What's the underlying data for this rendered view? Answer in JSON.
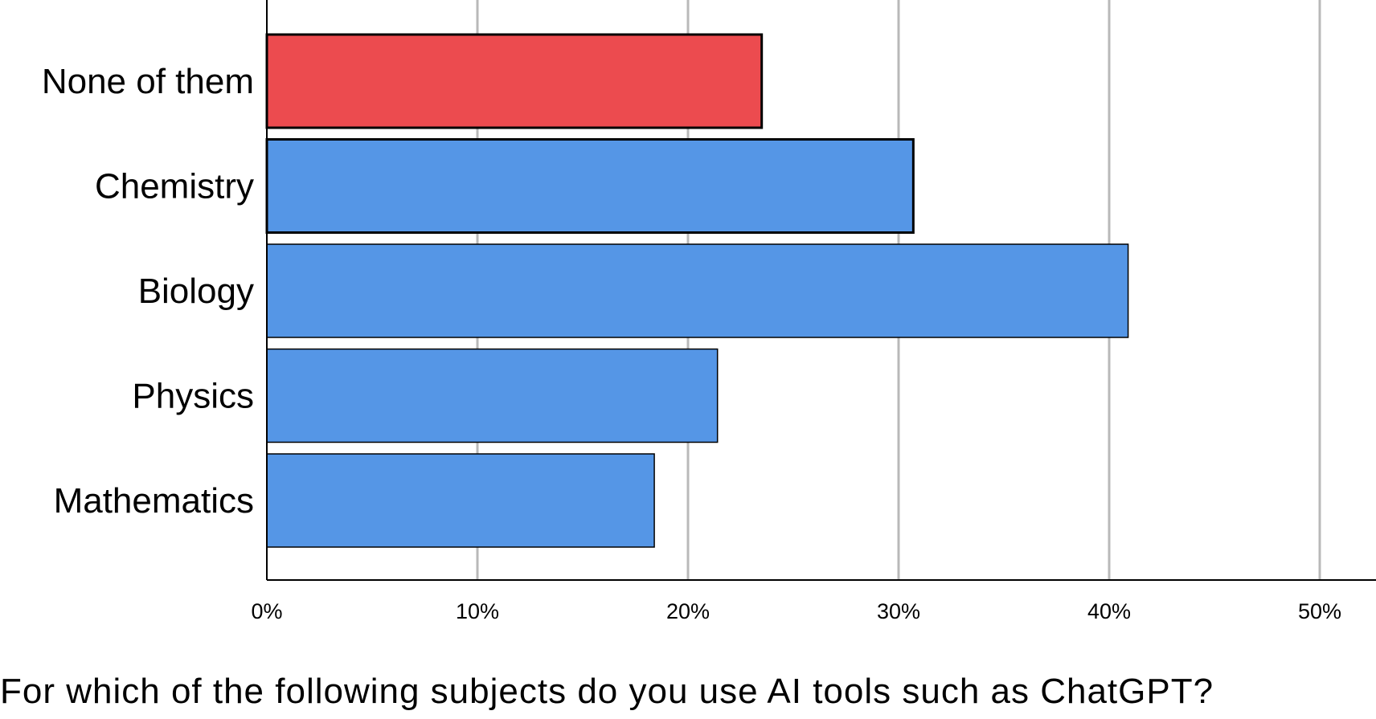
{
  "chart_data": {
    "type": "bar",
    "orientation": "horizontal",
    "categories": [
      "None of them",
      "Chemistry",
      "Biology",
      "Physics",
      "Mathematics"
    ],
    "values": [
      23.5,
      30.7,
      40.9,
      21.4,
      18.4
    ],
    "value_unit": "%",
    "xlim": [
      0,
      52
    ],
    "x_ticks": [
      "0%",
      "10%",
      "20%",
      "30%",
      "40%",
      "50%"
    ],
    "x_tick_values": [
      0,
      10,
      20,
      30,
      40,
      50
    ],
    "grid": "vertical",
    "xlabel": "For which of the following subjects do you use AI tools such as ChatGPT?",
    "ylabel": "",
    "title": "",
    "colors": {
      "default": "#5596e6",
      "highlight": "#ec4b4f"
    },
    "highlighted_category": "None of them",
    "emphasized_outline_categories": [
      "None of them",
      "Chemistry"
    ]
  }
}
